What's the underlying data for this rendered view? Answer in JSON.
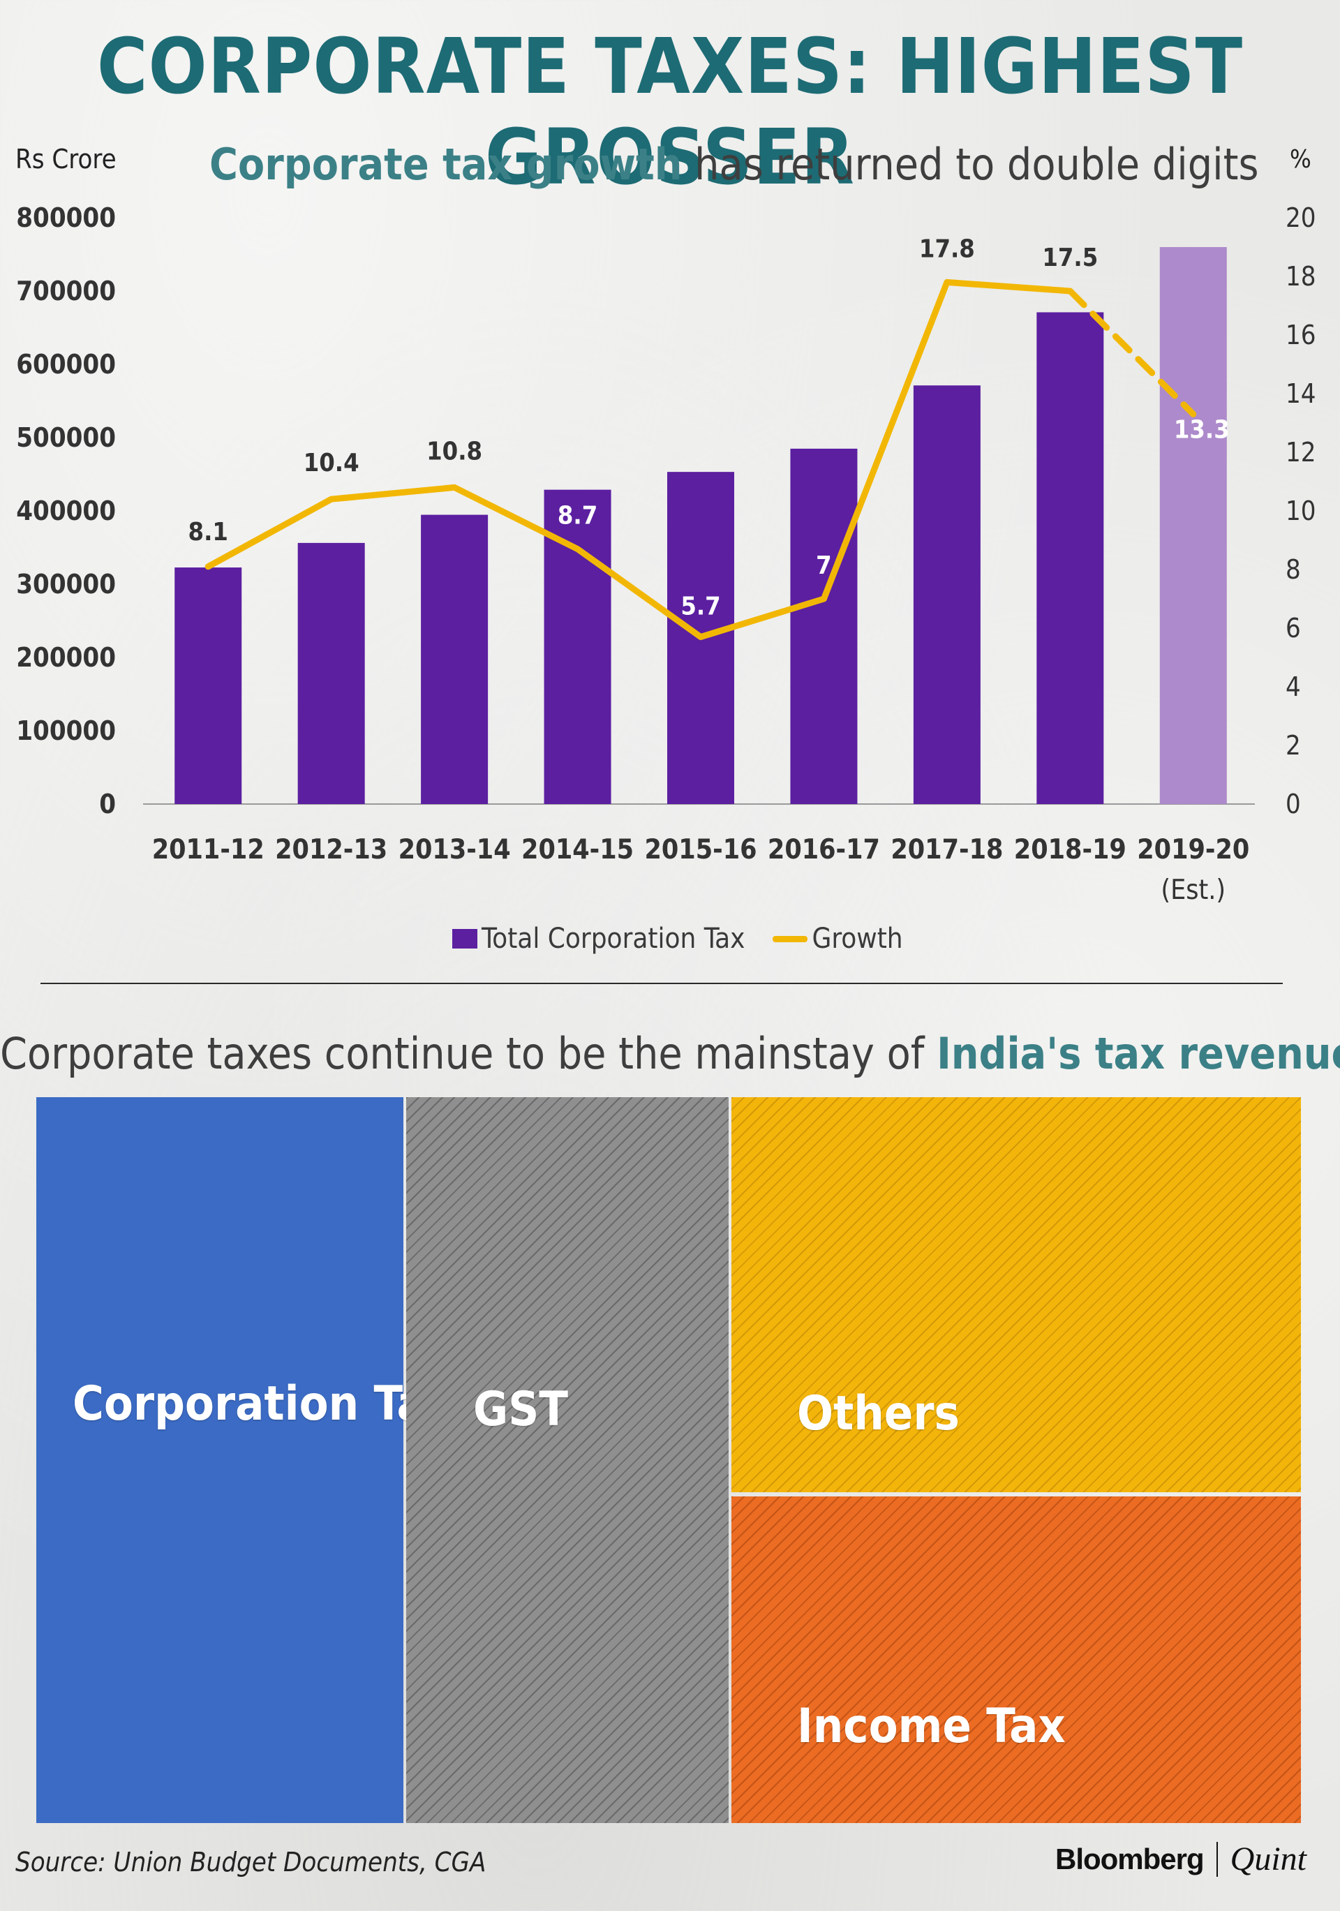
{
  "header": {
    "title": "CORPORATE TAXES: HIGHEST GROSSER"
  },
  "chart_data": {
    "type": "bar",
    "subtitle_highlight": "Corporate tax growth",
    "subtitle_rest": " has returned to double digits",
    "ylabel_left": "Rs Crore",
    "ylabel_right": "%",
    "categories": [
      "2011-12",
      "2012-13",
      "2013-14",
      "2014-15",
      "2015-16",
      "2016-17",
      "2017-18",
      "2018-19",
      "2019-20"
    ],
    "category_sublabels": [
      "",
      "",
      "",
      "",
      "",
      "",
      "",
      "",
      "(Est.)"
    ],
    "ylim_left": [
      0,
      800000
    ],
    "yticks_left": [
      0,
      100000,
      200000,
      300000,
      400000,
      500000,
      600000,
      700000,
      800000
    ],
    "ylim_right": [
      0,
      20
    ],
    "yticks_right": [
      0,
      2,
      4,
      6,
      8,
      10,
      12,
      14,
      16,
      18,
      20
    ],
    "series": [
      {
        "name": "Total Corporation Tax",
        "type": "bar",
        "axis": "left",
        "values": [
          322800,
          356300,
          394700,
          428900,
          453200,
          484900,
          571200,
          671000,
          760000
        ],
        "color": "#5b1fa0",
        "estimate_color": "#ad8acb"
      },
      {
        "name": "Growth",
        "type": "line",
        "axis": "right",
        "values": [
          8.1,
          10.4,
          10.8,
          8.7,
          5.7,
          7,
          17.8,
          17.5,
          13.3
        ],
        "labels": [
          "8.1",
          "10.4",
          "10.8",
          "8.7",
          "5.7",
          "7",
          "17.8",
          "17.5",
          "13.3"
        ],
        "color": "#f2b705",
        "dashed_from_index": 7
      }
    ],
    "grid": false,
    "legend": "bottom-center"
  },
  "treemap": {
    "title_plain": "Corporate taxes continue to be the mainstay of ",
    "title_highlight": "India's tax revenue",
    "tiles": [
      {
        "label": "Corporation Tax",
        "color": "#3b6bc4"
      },
      {
        "label": "GST",
        "color": "#8f8f8f"
      },
      {
        "label": "Others",
        "color": "#f4b50b"
      },
      {
        "label": "Income Tax",
        "color": "#ec6c23"
      }
    ]
  },
  "footer": {
    "source": "Source: Union Budget Documents, CGA",
    "brand1": "Bloomberg",
    "brand2": "Quint"
  }
}
